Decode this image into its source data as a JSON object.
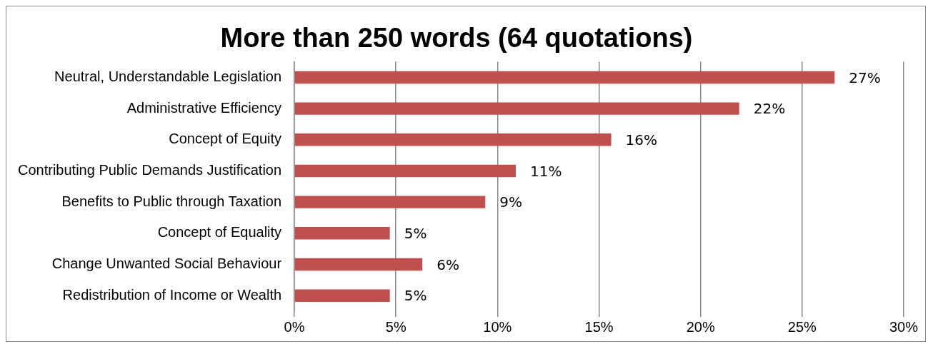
{
  "chart_data": {
    "type": "bar",
    "orientation": "horizontal",
    "title": "More than 250 words (64 quotations)",
    "categories": [
      "Neutral, Understandable Legislation",
      "Administrative Efficiency",
      "Concept of Equity",
      "Contributing Public Demands Justification",
      "Benefits to Public through Taxation",
      "Concept of Equality",
      "Change Unwanted Social Behaviour",
      "Redistribution of Income or Wealth"
    ],
    "values": [
      26.6,
      21.9,
      15.6,
      10.9,
      9.4,
      4.7,
      6.3,
      4.7
    ],
    "value_labels": [
      "27%",
      "22%",
      "16%",
      "11%",
      "9%",
      "5%",
      "6%",
      "5%"
    ],
    "color": "#c0504d",
    "xlim": [
      0,
      30
    ],
    "xticks": [
      {
        "value": 0,
        "label": "0%"
      },
      {
        "value": 5,
        "label": "5%"
      },
      {
        "value": 10,
        "label": "10%"
      },
      {
        "value": 15,
        "label": "15%"
      },
      {
        "value": 20,
        "label": "20%"
      },
      {
        "value": 25,
        "label": "25%"
      },
      {
        "value": 30,
        "label": "30%"
      }
    ],
    "grid": "x",
    "legend": false
  }
}
